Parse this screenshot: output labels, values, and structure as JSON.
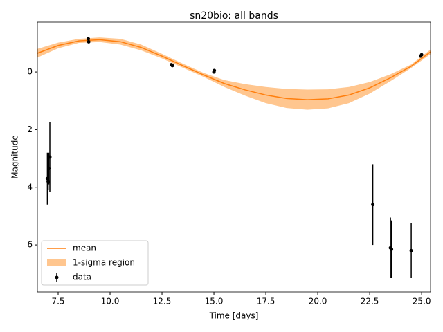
{
  "chart_data": {
    "type": "errorbar",
    "title": "sn20bio: all bands",
    "xlabel": "Time [days]",
    "ylabel": "Magnitude",
    "xlim": [
      6.5,
      25.43
    ],
    "ylim": [
      -1.73,
      7.63
    ],
    "invert_y": true,
    "xticks": [
      7.5,
      {
        "value": 10,
        "label": "10.0"
      },
      12.5,
      {
        "value": 15,
        "label": "15.0"
      },
      17.5,
      {
        "value": 20,
        "label": "20.0"
      },
      22.5,
      {
        "value": 25,
        "label": "25.0"
      }
    ],
    "yticks": [
      0,
      2,
      4,
      6
    ],
    "legend": "lower left",
    "mean": {
      "name": "mean",
      "color": "#ff7f0e",
      "x": [
        6.5,
        7.5,
        8.5,
        9.5,
        10.5,
        11.5,
        12.5,
        13.5,
        14.5,
        15.5,
        16.5,
        17.5,
        18.5,
        19.5,
        20.5,
        21.5,
        22.5,
        23.5,
        24.5,
        25.43
      ],
      "values": [
        -0.65,
        -0.92,
        -1.08,
        -1.12,
        -1.05,
        -0.85,
        -0.55,
        -0.22,
        0.1,
        0.4,
        0.62,
        0.8,
        0.92,
        0.96,
        0.93,
        0.8,
        0.55,
        0.2,
        -0.2,
        -0.7
      ]
    },
    "band": {
      "name": "1-sigma region",
      "color": "#ffc68f",
      "x": [
        6.5,
        7.5,
        8.5,
        9.5,
        10.5,
        11.5,
        12.5,
        13.5,
        14.5,
        15.5,
        16.5,
        17.5,
        18.5,
        19.5,
        20.5,
        21.5,
        22.5,
        23.5,
        24.5,
        25.43
      ],
      "lower": [
        -0.8,
        -1.02,
        -1.15,
        -1.2,
        -1.15,
        -0.95,
        -0.63,
        -0.29,
        0.03,
        0.28,
        0.42,
        0.52,
        0.59,
        0.61,
        0.6,
        0.52,
        0.35,
        0.08,
        -0.26,
        -0.78
      ],
      "upper": [
        -0.5,
        -0.82,
        -1.01,
        -1.04,
        -0.95,
        -0.75,
        -0.47,
        -0.15,
        0.17,
        0.52,
        0.82,
        1.08,
        1.25,
        1.31,
        1.26,
        1.08,
        0.75,
        0.32,
        -0.14,
        -0.62
      ]
    },
    "data": {
      "name": "data",
      "color": "#000000",
      "x": [
        6.98,
        7.02,
        7.05,
        7.1,
        8.95,
        8.97,
        12.95,
        13.0,
        15.0,
        15.02,
        22.65,
        23.5,
        23.55,
        24.5,
        24.95,
        25.0
      ],
      "values": [
        3.7,
        3.8,
        3.35,
        2.95,
        -1.15,
        -1.05,
        -0.25,
        -0.22,
        0.0,
        -0.05,
        4.6,
        6.1,
        6.15,
        6.2,
        -0.55,
        -0.6
      ],
      "errors": [
        0.9,
        0.3,
        0.55,
        1.2,
        0.05,
        0.05,
        0.04,
        0.04,
        0.04,
        0.04,
        1.4,
        1.05,
        1.0,
        0.95,
        0.05,
        0.05
      ]
    }
  }
}
